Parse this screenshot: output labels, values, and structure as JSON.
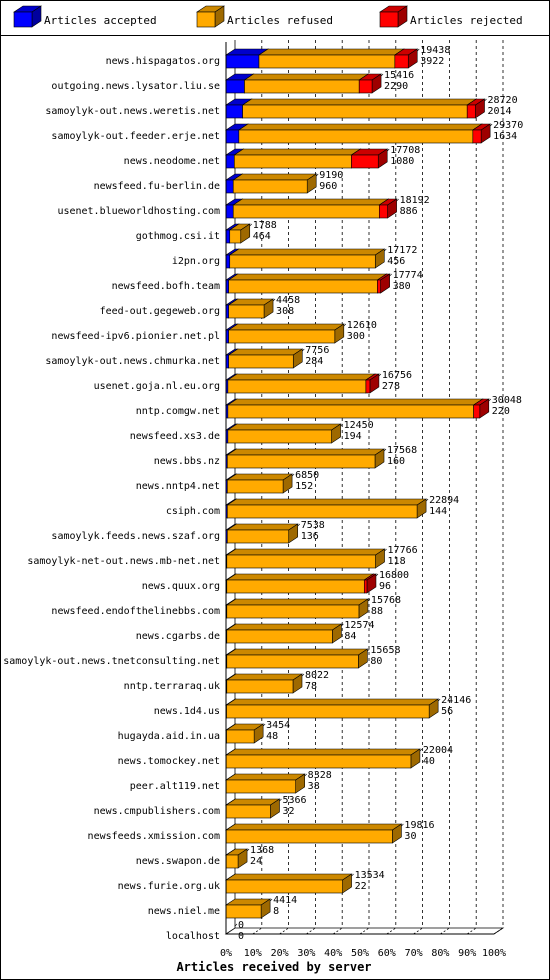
{
  "chart_data": {
    "type": "bar",
    "orientation": "horizontal",
    "stacked": true,
    "xlabel": "Articles received by server",
    "xlim": [
      0,
      100
    ],
    "x_ticks": [
      "0%",
      "10%",
      "20%",
      "30%",
      "40%",
      "50%",
      "60%",
      "70%",
      "80%",
      "90%",
      "100%"
    ],
    "grid": "vertical dashed",
    "legend_position": "top",
    "legend": [
      {
        "name": "Articles accepted",
        "color": "#0000ff"
      },
      {
        "name": "Articles refused",
        "color": "#ffaa00"
      },
      {
        "name": "Articles rejected",
        "color": "#ff0000"
      }
    ],
    "rows": [
      {
        "server": "news.hispagatos.org",
        "total": "19438",
        "accepted": "3922",
        "acc_pct": 12.3,
        "ref_pct": 50.7,
        "rej_pct": 5.0
      },
      {
        "server": "outgoing.news.lysator.liu.se",
        "total": "15416",
        "accepted": "2290",
        "acc_pct": 6.9,
        "ref_pct": 42.8,
        "rej_pct": 4.8
      },
      {
        "server": "samoylyk-out.news.weretis.net",
        "total": "28720",
        "accepted": "2014",
        "acc_pct": 6.2,
        "ref_pct": 83.8,
        "rej_pct": 3.1
      },
      {
        "server": "samoylyk-out.feeder.erje.net",
        "total": "29370",
        "accepted": "1634",
        "acc_pct": 4.8,
        "ref_pct": 87.3,
        "rej_pct": 3.1
      },
      {
        "server": "news.neodome.net",
        "total": "17708",
        "accepted": "1080",
        "acc_pct": 3.1,
        "ref_pct": 43.7,
        "rej_pct": 10.0
      },
      {
        "server": "newsfeed.fu-berlin.de",
        "total": "9190",
        "accepted": "960",
        "acc_pct": 2.7,
        "ref_pct": 27.6,
        "rej_pct": 0
      },
      {
        "server": "usenet.blueworldhosting.com",
        "total": "18192",
        "accepted": "886",
        "acc_pct": 2.7,
        "ref_pct": 54.5,
        "rej_pct": 3.1
      },
      {
        "server": "gothmog.csi.it",
        "total": "1788",
        "accepted": "464",
        "acc_pct": 1.4,
        "ref_pct": 4.1,
        "rej_pct": 0
      },
      {
        "server": "i2pn.org",
        "total": "17172",
        "accepted": "456",
        "acc_pct": 1.4,
        "ref_pct": 54.3,
        "rej_pct": 0
      },
      {
        "server": "newsfeed.bofh.team",
        "total": "17774",
        "accepted": "380",
        "acc_pct": 1.0,
        "ref_pct": 55.5,
        "rej_pct": 1.2
      },
      {
        "server": "feed-out.gegeweb.org",
        "total": "4458",
        "accepted": "308",
        "acc_pct": 1.0,
        "ref_pct": 13.2,
        "rej_pct": 0
      },
      {
        "server": "newsfeed-ipv6.pionier.net.pl",
        "total": "12610",
        "accepted": "300",
        "acc_pct": 1.0,
        "ref_pct": 39.6,
        "rej_pct": 0
      },
      {
        "server": "samoylyk-out.news.chmurka.net",
        "total": "7756",
        "accepted": "284",
        "acc_pct": 1.0,
        "ref_pct": 24.1,
        "rej_pct": 0
      },
      {
        "server": "usenet.goja.nl.eu.org",
        "total": "16756",
        "accepted": "278",
        "acc_pct": 0.7,
        "ref_pct": 51.5,
        "rej_pct": 1.5
      },
      {
        "server": "nntp.comgw.net",
        "total": "30048",
        "accepted": "220",
        "acc_pct": 0.7,
        "ref_pct": 91.7,
        "rej_pct": 2.3
      },
      {
        "server": "newsfeed.xs3.de",
        "total": "12450",
        "accepted": "194",
        "acc_pct": 0.7,
        "ref_pct": 38.7,
        "rej_pct": 0
      },
      {
        "server": "news.bbs.nz",
        "total": "17568",
        "accepted": "160",
        "acc_pct": 0.5,
        "ref_pct": 55.1,
        "rej_pct": 0
      },
      {
        "server": "news.nntp4.net",
        "total": "6850",
        "accepted": "152",
        "acc_pct": 0.5,
        "ref_pct": 20.8,
        "rej_pct": 0
      },
      {
        "server": "csiph.com",
        "total": "22894",
        "accepted": "144",
        "acc_pct": 0.5,
        "ref_pct": 70.8,
        "rej_pct": 0
      },
      {
        "server": "samoylyk.feeds.news.szaf.org",
        "total": "7538",
        "accepted": "136",
        "acc_pct": 0.5,
        "ref_pct": 22.9,
        "rej_pct": 0
      },
      {
        "server": "samoylyk-net-out.news.mb-net.net",
        "total": "17766",
        "accepted": "118",
        "acc_pct": 0.3,
        "ref_pct": 55.5,
        "rej_pct": 0
      },
      {
        "server": "news.quux.org",
        "total": "16800",
        "accepted": "96",
        "acc_pct": 0.3,
        "ref_pct": 51.3,
        "rej_pct": 1.0
      },
      {
        "server": "newsfeed.endofthelinebbs.com",
        "total": "15768",
        "accepted": "88",
        "acc_pct": 0.3,
        "ref_pct": 49.3,
        "rej_pct": 0
      },
      {
        "server": "news.cgarbs.de",
        "total": "12574",
        "accepted": "84",
        "acc_pct": 0.3,
        "ref_pct": 39.4,
        "rej_pct": 0
      },
      {
        "server": "samoylyk-out.news.tnetconsulting.net",
        "total": "15658",
        "accepted": "80",
        "acc_pct": 0.3,
        "ref_pct": 49.1,
        "rej_pct": 0
      },
      {
        "server": "nntp.terraraq.uk",
        "total": "8022",
        "accepted": "78",
        "acc_pct": 0.3,
        "ref_pct": 24.7,
        "rej_pct": 0
      },
      {
        "server": "news.1d4.us",
        "total": "24146",
        "accepted": "56",
        "acc_pct": 0.2,
        "ref_pct": 75.6,
        "rej_pct": 0
      },
      {
        "server": "hugayda.aid.in.ua",
        "total": "3454",
        "accepted": "48",
        "acc_pct": 0.2,
        "ref_pct": 10.3,
        "rej_pct": 0
      },
      {
        "server": "news.tomockey.net",
        "total": "22004",
        "accepted": "40",
        "acc_pct": 0.1,
        "ref_pct": 68.9,
        "rej_pct": 0
      },
      {
        "server": "peer.alt119.net",
        "total": "8328",
        "accepted": "38",
        "acc_pct": 0.1,
        "ref_pct": 25.9,
        "rej_pct": 0
      },
      {
        "server": "news.cmpublishers.com",
        "total": "5366",
        "accepted": "32",
        "acc_pct": 0.1,
        "ref_pct": 16.5,
        "rej_pct": 0
      },
      {
        "server": "newsfeeds.xmission.com",
        "total": "19816",
        "accepted": "30",
        "acc_pct": 0.1,
        "ref_pct": 62.0,
        "rej_pct": 0
      },
      {
        "server": "news.swapon.de",
        "total": "1368",
        "accepted": "24",
        "acc_pct": 0.1,
        "ref_pct": 4.4,
        "rej_pct": 0
      },
      {
        "server": "news.furie.org.uk",
        "total": "13534",
        "accepted": "22",
        "acc_pct": 0.1,
        "ref_pct": 43.4,
        "rej_pct": 0
      },
      {
        "server": "news.niel.me",
        "total": "4414",
        "accepted": "8",
        "acc_pct": 0.0,
        "ref_pct": 13.1,
        "rej_pct": 0
      },
      {
        "server": "localhost",
        "total": "0",
        "accepted": "0",
        "acc_pct": 0,
        "ref_pct": 0,
        "rej_pct": 0
      }
    ]
  }
}
